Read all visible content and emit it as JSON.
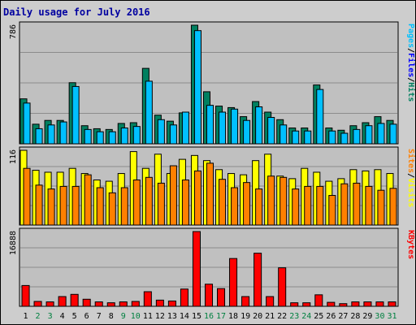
{
  "title": "Daily usage for July 2016",
  "colors": {
    "title": "#0000a0",
    "panel_bg": "#c0c0c0",
    "grid": "#8c8c8c",
    "hits": "#008060",
    "files": "#0000ff",
    "pages": "#00c0ff",
    "visits": "#ffff00",
    "sites": "#ff8000",
    "kbytes": "#ff0000",
    "weekday_label": "#000000",
    "weekend_label": "#008040"
  },
  "right_labels": {
    "top": [
      "Pages",
      "/",
      "Files",
      "/",
      "Hits"
    ],
    "middle": [
      "Sites",
      "/",
      "Visits"
    ],
    "bottom": [
      "KBytes"
    ]
  },
  "chart_data": [
    {
      "type": "bar",
      "name": "hits-files-pages",
      "ylabel": "786",
      "ylim": [
        0,
        786
      ],
      "grid": true,
      "categories": [
        "1",
        "2",
        "3",
        "4",
        "5",
        "6",
        "7",
        "8",
        "9",
        "10",
        "11",
        "12",
        "13",
        "14",
        "15",
        "16",
        "17",
        "18",
        "19",
        "20",
        "21",
        "22",
        "23",
        "24",
        "25",
        "26",
        "27",
        "28",
        "29",
        "30",
        "31"
      ],
      "weekend": [
        "2",
        "3",
        "9",
        "10",
        "16",
        "17",
        "23",
        "24",
        "30",
        "31"
      ],
      "series": [
        {
          "name": "Hits",
          "values": [
            298,
            130,
            155,
            155,
            405,
            120,
            100,
            95,
            135,
            140,
            500,
            190,
            150,
            205,
            786,
            345,
            250,
            240,
            180,
            280,
            210,
            160,
            105,
            105,
            390,
            105,
            90,
            120,
            140,
            180,
            155
          ]
        },
        {
          "name": "Pages",
          "values": [
            270,
            100,
            125,
            145,
            380,
            95,
            80,
            80,
            105,
            115,
            415,
            160,
            125,
            210,
            750,
            255,
            210,
            230,
            155,
            245,
            175,
            125,
            85,
            85,
            360,
            85,
            70,
            95,
            120,
            135,
            130
          ]
        }
      ]
    },
    {
      "type": "bar",
      "name": "visits-sites",
      "ylabel": "116",
      "ylim": [
        0,
        116
      ],
      "grid": true,
      "categories": [
        "1",
        "2",
        "3",
        "4",
        "5",
        "6",
        "7",
        "8",
        "9",
        "10",
        "11",
        "12",
        "13",
        "14",
        "15",
        "16",
        "17",
        "18",
        "19",
        "20",
        "21",
        "22",
        "23",
        "24",
        "25",
        "26",
        "27",
        "28",
        "29",
        "30",
        "31"
      ],
      "series": [
        {
          "name": "Visits",
          "values": [
            116,
            85,
            82,
            82,
            88,
            80,
            70,
            68,
            80,
            114,
            88,
            110,
            80,
            102,
            108,
            100,
            86,
            80,
            78,
            100,
            110,
            76,
            72,
            88,
            82,
            68,
            72,
            86,
            84,
            86,
            80
          ]
        },
        {
          "name": "Sites",
          "values": [
            88,
            62,
            56,
            60,
            60,
            78,
            58,
            50,
            58,
            70,
            74,
            65,
            92,
            70,
            84,
            96,
            71,
            58,
            66,
            56,
            76,
            74,
            56,
            60,
            60,
            46,
            64,
            65,
            60,
            54,
            57
          ]
        }
      ]
    },
    {
      "type": "bar",
      "name": "kbytes",
      "ylabel": "16888",
      "ylim": [
        0,
        16888
      ],
      "grid": true,
      "categories": [
        "1",
        "2",
        "3",
        "4",
        "5",
        "6",
        "7",
        "8",
        "9",
        "10",
        "11",
        "12",
        "13",
        "14",
        "15",
        "16",
        "17",
        "18",
        "19",
        "20",
        "21",
        "22",
        "23",
        "24",
        "25",
        "26",
        "27",
        "28",
        "29",
        "30",
        "31"
      ],
      "series": [
        {
          "name": "KBytes",
          "values": [
            4700,
            1100,
            1000,
            2200,
            2700,
            1600,
            1000,
            800,
            1000,
            1100,
            3300,
            1400,
            1200,
            3900,
            16888,
            5000,
            4000,
            10800,
            2200,
            12000,
            2200,
            8700,
            800,
            800,
            2600,
            900,
            600,
            1000,
            1000,
            1000,
            1000
          ]
        }
      ]
    }
  ]
}
